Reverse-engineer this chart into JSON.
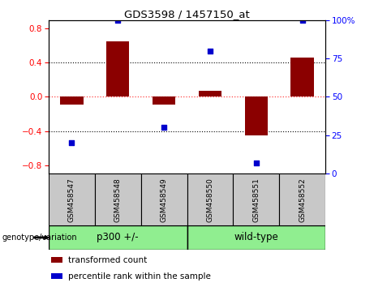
{
  "title": "GDS3598 / 1457150_at",
  "samples": [
    "GSM458547",
    "GSM458548",
    "GSM458549",
    "GSM458550",
    "GSM458551",
    "GSM458552"
  ],
  "bar_values": [
    -0.09,
    0.65,
    -0.09,
    0.07,
    -0.45,
    0.46
  ],
  "dot_percentiles": [
    20,
    100,
    30,
    80,
    7,
    100
  ],
  "bar_color": "#8B0000",
  "dot_color": "#0000CD",
  "zero_line_color": "#FF4444",
  "ylim_left": [
    -0.9,
    0.9
  ],
  "ylim_right": [
    0,
    100
  ],
  "yticks_left": [
    -0.8,
    -0.4,
    0.0,
    0.4,
    0.8
  ],
  "yticks_right": [
    0,
    25,
    50,
    75,
    100
  ],
  "group_ranges": [
    [
      0,
      2,
      "p300 +/-"
    ],
    [
      3,
      5,
      "wild-type"
    ]
  ],
  "group_color": "#90EE90",
  "group_label": "genotype/variation",
  "legend_items": [
    {
      "label": "transformed count",
      "color": "#8B0000"
    },
    {
      "label": "percentile rank within the sample",
      "color": "#0000CD"
    }
  ],
  "bar_width": 0.5,
  "tick_area_bg": "#C8C8C8"
}
